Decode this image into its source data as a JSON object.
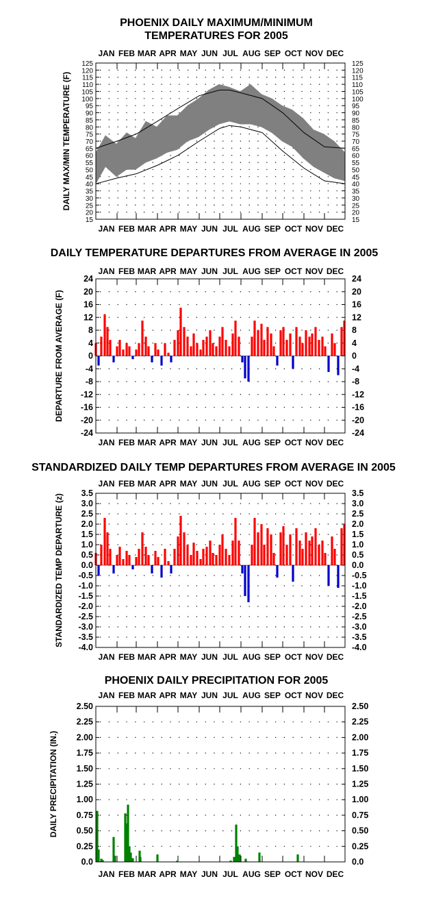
{
  "chart_data": [
    {
      "id": "maxmin",
      "type": "line",
      "title_lines": [
        "PHOENIX DAILY MAXIMUM/MINIMUM",
        "TEMPERATURES FOR 2005"
      ],
      "ylabel": "DAILY MAX/MIN TEMPERATURE (F)",
      "ylim": [
        15,
        125
      ],
      "yticks": [
        125,
        120,
        115,
        110,
        105,
        100,
        95,
        90,
        85,
        80,
        75,
        70,
        65,
        60,
        55,
        50,
        45,
        40,
        35,
        30,
        25,
        20,
        15
      ],
      "months": [
        "JAN",
        "FEB",
        "MAR",
        "APR",
        "MAY",
        "JUN",
        "JUL",
        "AUG",
        "SEP",
        "OCT",
        "NOV",
        "DEC"
      ],
      "grid": "dotted",
      "series": [
        {
          "role": "observed-range",
          "color": "#808080",
          "x_day": [
            1,
            15,
            31,
            46,
            59,
            74,
            90,
            105,
            120,
            135,
            151,
            166,
            181,
            196,
            212,
            227,
            243,
            258,
            273,
            288,
            304,
            319,
            334,
            349,
            365
          ],
          "max": [
            62,
            74,
            68,
            76,
            72,
            84,
            80,
            88,
            88,
            95,
            100,
            106,
            110,
            108,
            105,
            110,
            103,
            100,
            95,
            92,
            86,
            78,
            75,
            70,
            62
          ],
          "min": [
            40,
            52,
            45,
            50,
            50,
            55,
            58,
            62,
            64,
            70,
            73,
            78,
            82,
            84,
            82,
            82,
            80,
            76,
            70,
            66,
            58,
            52,
            48,
            44,
            42
          ]
        },
        {
          "role": "normal-max",
          "color": "#000000",
          "x_day": [
            1,
            32,
            60,
            91,
            121,
            152,
            182,
            196,
            213,
            244,
            274,
            305,
            335,
            365
          ],
          "values": [
            65,
            70,
            75,
            84,
            93,
            102,
            106,
            106,
            104,
            100,
            90,
            76,
            66,
            65
          ]
        },
        {
          "role": "normal-min",
          "color": "#000000",
          "x_day": [
            1,
            32,
            60,
            91,
            121,
            152,
            182,
            196,
            213,
            244,
            274,
            305,
            335,
            365
          ],
          "values": [
            40,
            44,
            47,
            53,
            60,
            70,
            79,
            81,
            80,
            76,
            63,
            51,
            42,
            40
          ]
        }
      ]
    },
    {
      "id": "departures",
      "type": "bar",
      "title_lines": [
        "DAILY TEMPERATURE DEPARTURES FROM AVERAGE IN 2005"
      ],
      "ylabel": "DEPARTURE FROM AVERAGE (F)",
      "ylim": [
        -24,
        24
      ],
      "yticks": [
        "24",
        "20",
        "16",
        "12",
        "8",
        "4",
        "0",
        "-4",
        "-8",
        "-12",
        "-16",
        "-20",
        "-24"
      ],
      "months": [
        "JAN",
        "FEB",
        "MAR",
        "APR",
        "MAY",
        "JUN",
        "JUL",
        "AUG",
        "SEP",
        "OCT",
        "NOV",
        "DEC"
      ],
      "grid": "dotted",
      "positive_color": "#ff0000",
      "negative_color": "#0000cc",
      "x_day": [
        1,
        5,
        9,
        14,
        18,
        22,
        27,
        32,
        36,
        41,
        46,
        50,
        55,
        60,
        64,
        69,
        74,
        78,
        83,
        88,
        92,
        97,
        102,
        107,
        111,
        116,
        121,
        125,
        130,
        135,
        140,
        144,
        149,
        154,
        158,
        163,
        168,
        172,
        177,
        182,
        186,
        191,
        196,
        201,
        205,
        210,
        215,
        219,
        224,
        229,
        233,
        238,
        243,
        247,
        252,
        257,
        261,
        266,
        271,
        275,
        280,
        285,
        289,
        294,
        299,
        303,
        308,
        313,
        317,
        322,
        327,
        332,
        336,
        341,
        346,
        350,
        355,
        360,
        364
      ],
      "values": [
        4,
        -3,
        6,
        13,
        9,
        5,
        -2,
        3,
        5,
        2,
        4,
        3,
        -1,
        2,
        4,
        11,
        6,
        3,
        -2,
        4,
        2,
        -3,
        4,
        1,
        -2,
        5,
        8,
        15,
        9,
        6,
        3,
        7,
        4,
        2,
        5,
        6,
        8,
        4,
        3,
        6,
        9,
        5,
        3,
        7,
        11,
        6,
        -2,
        -7,
        -8,
        6,
        11,
        8,
        10,
        5,
        9,
        7,
        3,
        -3,
        8,
        9,
        5,
        7,
        -4,
        9,
        6,
        4,
        8,
        6,
        7,
        9,
        5,
        6,
        3,
        -5,
        7,
        4,
        -6,
        9,
        11
      ]
    },
    {
      "id": "standardized",
      "type": "bar",
      "title_lines": [
        "STANDARDIZED DAILY TEMP DEPARTURES FROM AVERAGE IN 2005"
      ],
      "ylabel": "STANDARDIZED TEMP DEPARTURE (z)",
      "ylim": [
        -4.0,
        3.5
      ],
      "yticks": [
        "3.5",
        "3.0",
        "2.5",
        "2.0",
        "1.5",
        "1.0",
        "0.5",
        "0.0",
        "-0.5",
        "-1.0",
        "-1.5",
        "-2.0",
        "-2.5",
        "-3.0",
        "-3.5",
        "-4.0"
      ],
      "months": [
        "JAN",
        "FEB",
        "MAR",
        "APR",
        "MAY",
        "JUN",
        "JUL",
        "AUG",
        "SEP",
        "OCT",
        "NOV",
        "DEC"
      ],
      "grid": "dotted",
      "positive_color": "#ff0000",
      "negative_color": "#0000cc",
      "x_day": [
        1,
        5,
        9,
        14,
        18,
        22,
        27,
        32,
        36,
        41,
        46,
        50,
        55,
        60,
        64,
        69,
        74,
        78,
        83,
        88,
        92,
        97,
        102,
        107,
        111,
        116,
        121,
        125,
        130,
        135,
        140,
        144,
        149,
        154,
        158,
        163,
        168,
        172,
        177,
        182,
        186,
        191,
        196,
        201,
        205,
        210,
        215,
        219,
        224,
        229,
        233,
        238,
        243,
        247,
        252,
        257,
        261,
        266,
        271,
        275,
        280,
        285,
        289,
        294,
        299,
        303,
        308,
        313,
        317,
        322,
        327,
        332,
        336,
        341,
        346,
        350,
        355,
        360,
        364
      ],
      "values": [
        0.6,
        -0.5,
        1.0,
        2.3,
        1.6,
        0.8,
        -0.4,
        0.5,
        0.9,
        0.3,
        0.7,
        0.5,
        -0.2,
        0.4,
        0.8,
        1.6,
        0.9,
        0.5,
        -0.4,
        0.7,
        0.4,
        -0.6,
        0.8,
        0.2,
        -0.4,
        0.8,
        1.4,
        2.4,
        1.6,
        1.0,
        0.5,
        1.1,
        0.7,
        0.3,
        0.8,
        0.9,
        1.2,
        0.6,
        0.5,
        1.0,
        1.5,
        0.8,
        0.5,
        1.2,
        2.3,
        1.2,
        -0.4,
        -1.5,
        -1.8,
        1.0,
        2.3,
        1.6,
        2.0,
        1.0,
        1.8,
        1.5,
        0.6,
        -0.6,
        1.6,
        1.9,
        1.0,
        1.5,
        -0.8,
        1.8,
        1.2,
        0.8,
        1.6,
        1.2,
        1.4,
        1.8,
        1.0,
        1.2,
        0.6,
        -1.0,
        1.4,
        0.8,
        -1.1,
        1.8,
        2.0
      ]
    },
    {
      "id": "precip",
      "type": "bar",
      "title_lines": [
        "PHOENIX DAILY PRECIPITATION FOR 2005"
      ],
      "ylabel": "DAILY PRECIPITATION (IN.)",
      "ylim": [
        0,
        2.5
      ],
      "yticks": [
        "2.50",
        "2.25",
        "2.00",
        "1.75",
        "1.50",
        "1.25",
        "1.00",
        "0.75",
        "0.50",
        "0.25",
        "0.0"
      ],
      "months": [
        "JAN",
        "FEB",
        "MAR",
        "APR",
        "MAY",
        "JUN",
        "JUL",
        "AUG",
        "SEP",
        "OCT",
        "NOV",
        "DEC"
      ],
      "grid": "dotted",
      "color": "#008000",
      "x_day": [
        3,
        5,
        9,
        11,
        27,
        29,
        44,
        46,
        48,
        50,
        52,
        55,
        65,
        66,
        91,
        120,
        198,
        203,
        206,
        208,
        211,
        220,
        240,
        296
      ],
      "values": [
        0.82,
        0.2,
        0.05,
        0.03,
        0.4,
        0.1,
        0.78,
        0.62,
        0.92,
        0.25,
        0.15,
        0.06,
        0.18,
        0.08,
        0.12,
        0.02,
        0.02,
        0.08,
        0.6,
        0.25,
        0.12,
        0.05,
        0.15,
        0.12
      ]
    }
  ]
}
